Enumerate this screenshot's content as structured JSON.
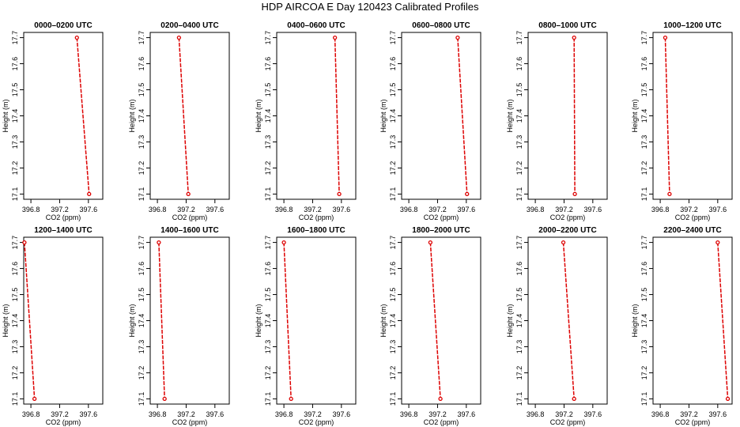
{
  "title": "HDP AIRCOA E  Day 120423  Calibrated Profiles",
  "colors": {
    "series": "#dd0000",
    "axis": "#000000"
  },
  "chart_data": [
    {
      "type": "line",
      "title": "0000–0200 UTC",
      "xlabel": "CO2 (ppm)",
      "ylabel": "Height (m)",
      "xlim": [
        396.7,
        397.8
      ],
      "ylim": [
        17.08,
        17.72
      ],
      "xticks": [
        396.8,
        397.2,
        397.6
      ],
      "yticks": [
        17.1,
        17.2,
        17.3,
        17.4,
        17.5,
        17.6,
        17.7
      ],
      "x": [
        397.44,
        397.61
      ],
      "y": [
        17.7,
        17.1
      ]
    },
    {
      "type": "line",
      "title": "0200–0400 UTC",
      "xlabel": "CO2 (ppm)",
      "ylabel": "Height (m)",
      "xlim": [
        396.7,
        397.8
      ],
      "ylim": [
        17.08,
        17.72
      ],
      "xticks": [
        396.8,
        397.2,
        397.6
      ],
      "yticks": [
        17.1,
        17.2,
        17.3,
        17.4,
        17.5,
        17.6,
        17.7
      ],
      "x": [
        397.1,
        397.23
      ],
      "y": [
        17.7,
        17.1
      ]
    },
    {
      "type": "line",
      "title": "0400–0600 UTC",
      "xlabel": "CO2 (ppm)",
      "ylabel": "Height (m)",
      "xlim": [
        396.7,
        397.8
      ],
      "ylim": [
        17.08,
        17.72
      ],
      "xticks": [
        396.8,
        397.2,
        397.6
      ],
      "yticks": [
        17.1,
        17.2,
        17.3,
        17.4,
        17.5,
        17.6,
        17.7
      ],
      "x": [
        397.51,
        397.57
      ],
      "y": [
        17.7,
        17.1
      ]
    },
    {
      "type": "line",
      "title": "0600–0800 UTC",
      "xlabel": "CO2 (ppm)",
      "ylabel": "Height (m)",
      "xlim": [
        396.7,
        397.8
      ],
      "ylim": [
        17.08,
        17.72
      ],
      "xticks": [
        396.8,
        397.2,
        397.6
      ],
      "yticks": [
        17.1,
        17.2,
        17.3,
        17.4,
        17.5,
        17.6,
        17.7
      ],
      "x": [
        397.48,
        397.61
      ],
      "y": [
        17.7,
        17.1
      ]
    },
    {
      "type": "line",
      "title": "0800–1000 UTC",
      "xlabel": "CO2 (ppm)",
      "ylabel": "Height (m)",
      "xlim": [
        396.7,
        397.8
      ],
      "ylim": [
        17.08,
        17.72
      ],
      "xticks": [
        396.8,
        397.2,
        397.6
      ],
      "yticks": [
        17.1,
        17.2,
        17.3,
        17.4,
        17.5,
        17.6,
        17.7
      ],
      "x": [
        397.34,
        397.35
      ],
      "y": [
        17.7,
        17.1
      ]
    },
    {
      "type": "line",
      "title": "1000–1200 UTC",
      "xlabel": "CO2 (ppm)",
      "ylabel": "Height (m)",
      "xlim": [
        396.7,
        397.8
      ],
      "ylim": [
        17.08,
        17.72
      ],
      "xticks": [
        396.8,
        397.2,
        397.6
      ],
      "yticks": [
        17.1,
        17.2,
        17.3,
        17.4,
        17.5,
        17.6,
        17.7
      ],
      "x": [
        396.87,
        396.93
      ],
      "y": [
        17.7,
        17.1
      ]
    },
    {
      "type": "line",
      "title": "1200–1400 UTC",
      "xlabel": "CO2 (ppm)",
      "ylabel": "Height (m)",
      "xlim": [
        396.7,
        397.8
      ],
      "ylim": [
        17.08,
        17.72
      ],
      "xticks": [
        396.8,
        397.2,
        397.6
      ],
      "yticks": [
        17.1,
        17.2,
        17.3,
        17.4,
        17.5,
        17.6,
        17.7
      ],
      "x": [
        396.71,
        396.85
      ],
      "y": [
        17.7,
        17.1
      ]
    },
    {
      "type": "line",
      "title": "1400–1600 UTC",
      "xlabel": "CO2 (ppm)",
      "ylabel": "Height (m)",
      "xlim": [
        396.7,
        397.8
      ],
      "ylim": [
        17.08,
        17.72
      ],
      "xticks": [
        396.8,
        397.2,
        397.6
      ],
      "yticks": [
        17.1,
        17.2,
        17.3,
        17.4,
        17.5,
        17.6,
        17.7
      ],
      "x": [
        396.82,
        396.9
      ],
      "y": [
        17.7,
        17.1
      ]
    },
    {
      "type": "line",
      "title": "1600–1800 UTC",
      "xlabel": "CO2 (ppm)",
      "ylabel": "Height (m)",
      "xlim": [
        396.7,
        397.8
      ],
      "ylim": [
        17.08,
        17.72
      ],
      "xticks": [
        396.8,
        397.2,
        397.6
      ],
      "yticks": [
        17.1,
        17.2,
        17.3,
        17.4,
        17.5,
        17.6,
        17.7
      ],
      "x": [
        396.8,
        396.9
      ],
      "y": [
        17.7,
        17.1
      ]
    },
    {
      "type": "line",
      "title": "1800–2000 UTC",
      "xlabel": "CO2 (ppm)",
      "ylabel": "Height (m)",
      "xlim": [
        396.7,
        397.8
      ],
      "ylim": [
        17.08,
        17.72
      ],
      "xticks": [
        396.8,
        397.2,
        397.6
      ],
      "yticks": [
        17.1,
        17.2,
        17.3,
        17.4,
        17.5,
        17.6,
        17.7
      ],
      "x": [
        397.1,
        397.24
      ],
      "y": [
        17.7,
        17.1
      ]
    },
    {
      "type": "line",
      "title": "2000–2200 UTC",
      "xlabel": "CO2 (ppm)",
      "ylabel": "Height (m)",
      "xlim": [
        396.7,
        397.8
      ],
      "ylim": [
        17.08,
        17.72
      ],
      "xticks": [
        396.8,
        397.2,
        397.6
      ],
      "yticks": [
        17.1,
        17.2,
        17.3,
        17.4,
        17.5,
        17.6,
        17.7
      ],
      "x": [
        397.19,
        397.34
      ],
      "y": [
        17.7,
        17.1
      ]
    },
    {
      "type": "line",
      "title": "2200–2400 UTC",
      "xlabel": "CO2 (ppm)",
      "ylabel": "Height (m)",
      "xlim": [
        396.7,
        397.8
      ],
      "ylim": [
        17.08,
        17.72
      ],
      "xticks": [
        396.8,
        397.2,
        397.6
      ],
      "yticks": [
        17.1,
        17.2,
        17.3,
        17.4,
        17.5,
        17.6,
        17.7
      ],
      "x": [
        397.6,
        397.74
      ],
      "y": [
        17.7,
        17.1
      ]
    }
  ]
}
